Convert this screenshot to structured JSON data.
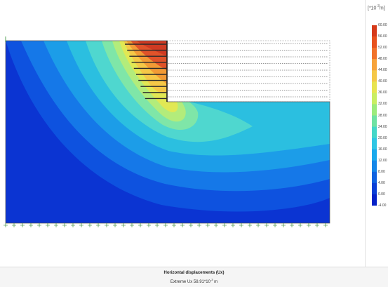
{
  "plot": {
    "title": "Horizontal displacements (Ux)",
    "extreme_prefix": "Extreme Ux",
    "extreme_value": "58.91",
    "extreme_unit": "*10",
    "extreme_exp": "-3",
    "extreme_suffix": "m"
  },
  "legend": {
    "unit_label": "[*10",
    "unit_exp": "-3",
    "unit_suffix": "m]",
    "ticks": [
      "60.00",
      "56.00",
      "52.00",
      "48.00",
      "44.00",
      "40.00",
      "36.00",
      "32.00",
      "28.00",
      "24.00",
      "20.00",
      "16.00",
      "12.00",
      "8.00",
      "4.00",
      "0.00",
      "-4.00"
    ],
    "colors": [
      "#d63a1a",
      "#e8521e",
      "#f1722a",
      "#f7a33a",
      "#f5c847",
      "#e8e44f",
      "#c9ee62",
      "#9ceb7c",
      "#6fe2a3",
      "#45d7c8",
      "#2fc6e4",
      "#1aa9ec",
      "#1486e8",
      "#0f62e0",
      "#0a3fd6",
      "#0522c8"
    ]
  },
  "colors": {
    "outer": "#0b34d2",
    "bands": [
      "#0e52df",
      "#1578e8",
      "#1c9de8",
      "#2bbfe0",
      "#4fd7cf",
      "#7fe6a8",
      "#b3ec7b",
      "#e1e854",
      "#f5c847"
    ],
    "anchor": "#2a2a2a",
    "grid_dash": "#333333"
  }
}
